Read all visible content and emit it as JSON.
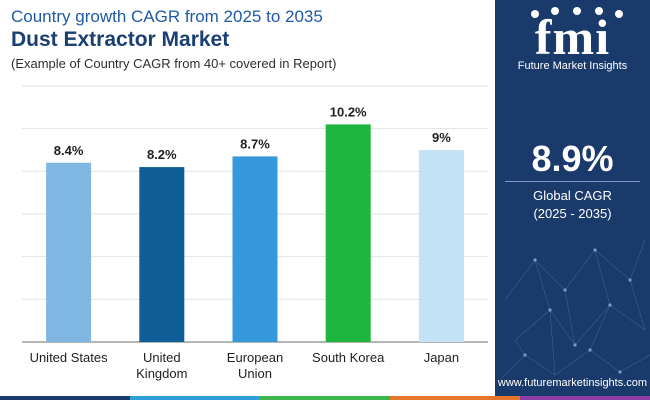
{
  "header": {
    "title_line1": "Country growth CAGR from 2025 to 2035",
    "title_line2": "Dust Extractor Market",
    "subtitle": "(Example of Country CAGR from 40+ covered in Report)"
  },
  "chart_data": {
    "type": "bar",
    "title": "Dust Extractor Market",
    "categories": [
      [
        "United States"
      ],
      [
        "United",
        "Kingdom"
      ],
      [
        "European",
        "Union"
      ],
      [
        "South Korea"
      ],
      [
        "Japan"
      ]
    ],
    "values": [
      8.4,
      8.2,
      8.7,
      10.2,
      9
    ],
    "value_labels": [
      "8.4%",
      "8.2%",
      "8.7%",
      "10.2%",
      "9%"
    ],
    "colors": [
      "#7fb7e2",
      "#0f5d96",
      "#3598dc",
      "#1db53d",
      "#c4e2f5"
    ],
    "ylim": [
      0,
      12
    ],
    "grid": true,
    "xlabel": "",
    "ylabel": ""
  },
  "side_panel": {
    "logo_text": "fmi",
    "logo_subtitle": "Future Market Insights",
    "global_value": "8.9%",
    "global_label": "Global CAGR",
    "global_period": "(2025 - 2035)",
    "website": "www.futuremarketinsights.com",
    "background_color": "#1a3a6b"
  },
  "stripe_colors": [
    "#1a3a6b",
    "#2f9fd8",
    "#3db54a",
    "#e5762b",
    "#8e3fa6"
  ]
}
